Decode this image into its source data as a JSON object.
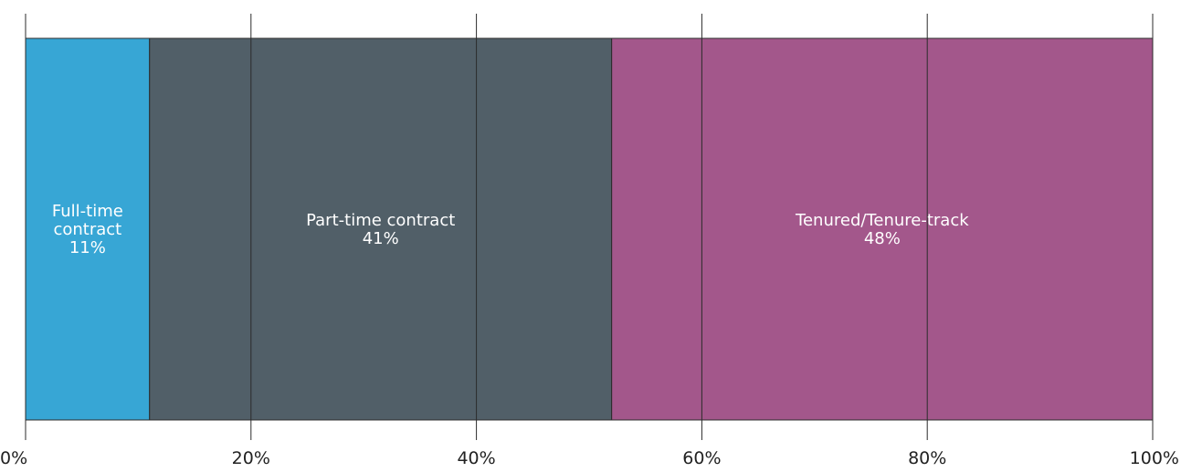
{
  "chart_data": {
    "type": "bar",
    "orientation": "horizontal",
    "stacked": true,
    "segments": [
      {
        "label_lines": [
          "Full-time",
          "contract"
        ],
        "value_label": "11%",
        "value": 11,
        "color": "#37a6d5"
      },
      {
        "label_lines": [
          "Part-time contract"
        ],
        "value_label": "41%",
        "value": 41,
        "color": "#515f68"
      },
      {
        "label_lines": [
          "Tenured/Tenure-track"
        ],
        "value_label": "48%",
        "value": 48,
        "color": "#a3578b"
      }
    ],
    "xlim": [
      0,
      100
    ],
    "x_ticks": [
      0,
      20,
      40,
      60,
      80,
      100
    ],
    "x_tick_labels": [
      "0%",
      "20%",
      "40%",
      "60%",
      "80%",
      "100%"
    ],
    "grid": false,
    "title": "",
    "xlabel": "",
    "ylabel": ""
  }
}
